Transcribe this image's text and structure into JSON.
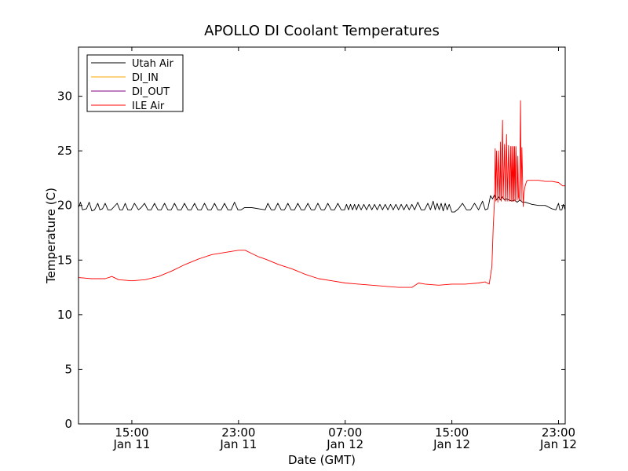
{
  "chart_data": {
    "type": "line",
    "title": "APOLLO DI Coolant Temperatures",
    "xlabel": "Date (GMT)",
    "ylabel": "Temperature (C)",
    "x_unit": "hours since Jan 11 00:00 GMT",
    "xlim": [
      11.0,
      47.5
    ],
    "ylim": [
      0,
      34.5
    ],
    "grid": false,
    "legend_position": "top-left",
    "y_ticks": [
      0,
      5,
      10,
      15,
      20,
      25,
      30
    ],
    "x_ticks": [
      {
        "x": 15,
        "time": "15:00",
        "date": "Jan 11"
      },
      {
        "x": 23,
        "time": "23:00",
        "date": "Jan 11"
      },
      {
        "x": 31,
        "time": "07:00",
        "date": "Jan 12"
      },
      {
        "x": 39,
        "time": "15:00",
        "date": "Jan 12"
      },
      {
        "x": 47,
        "time": "23:00",
        "date": "Jan 12"
      }
    ],
    "series": [
      {
        "name": "Utah Air",
        "color": "#000000",
        "x": [
          11.0,
          11.15,
          11.3,
          11.6,
          11.8,
          12.0,
          12.2,
          12.45,
          12.6,
          12.8,
          13.0,
          13.2,
          13.45,
          13.6,
          13.9,
          14.1,
          14.3,
          14.5,
          14.7,
          14.95,
          15.2,
          15.5,
          15.7,
          15.95,
          16.2,
          16.45,
          16.7,
          16.95,
          17.2,
          17.45,
          17.7,
          17.95,
          18.2,
          18.45,
          18.7,
          18.95,
          19.2,
          19.45,
          19.7,
          19.95,
          20.2,
          20.45,
          20.7,
          20.95,
          21.2,
          21.45,
          21.7,
          21.95,
          22.2,
          22.45,
          22.7,
          22.95,
          23.2,
          23.45,
          23.7,
          24.0,
          24.5,
          25.0,
          25.2,
          25.45,
          25.7,
          25.95,
          26.2,
          26.45,
          26.7,
          26.95,
          27.2,
          27.45,
          27.7,
          27.95,
          28.2,
          28.45,
          28.7,
          28.95,
          29.2,
          29.45,
          29.7,
          29.95,
          30.2,
          30.45,
          30.7,
          30.95,
          31.1,
          31.25,
          31.4,
          31.55,
          31.7,
          31.85,
          32.0,
          32.2,
          32.4,
          32.6,
          32.8,
          33.0,
          33.2,
          33.4,
          33.6,
          33.8,
          34.0,
          34.2,
          34.4,
          34.6,
          34.8,
          35.0,
          35.2,
          35.4,
          35.6,
          35.8,
          36.0,
          36.2,
          36.45,
          36.7,
          36.95,
          37.2,
          37.4,
          37.6,
          37.75,
          37.9,
          38.05,
          38.2,
          38.35,
          38.5,
          38.65,
          38.8,
          39.0,
          39.2,
          39.5,
          39.8,
          40.1,
          40.4,
          40.7,
          41.0,
          41.3,
          41.5,
          41.7,
          41.9,
          42.05,
          42.2,
          42.35,
          42.5,
          42.65,
          42.8,
          42.95,
          43.1,
          43.3,
          43.5,
          43.7,
          43.9,
          44.1,
          44.3,
          44.5,
          45.0,
          45.5,
          46.0,
          46.5,
          46.8,
          47.0,
          47.1,
          47.25,
          47.35,
          47.5
        ],
        "y": [
          19.8,
          20.3,
          19.6,
          19.7,
          20.3,
          19.5,
          19.6,
          20.2,
          19.6,
          19.7,
          20.2,
          19.6,
          19.6,
          19.8,
          20.2,
          19.6,
          19.6,
          20.2,
          19.6,
          19.6,
          20.2,
          19.6,
          19.8,
          20.2,
          19.6,
          19.6,
          20.2,
          19.6,
          19.6,
          20.2,
          19.6,
          19.6,
          20.2,
          19.6,
          19.6,
          20.2,
          19.6,
          19.6,
          20.2,
          19.6,
          19.6,
          20.2,
          19.6,
          19.6,
          20.2,
          19.6,
          19.6,
          20.2,
          19.6,
          19.6,
          20.3,
          19.6,
          19.6,
          19.8,
          19.8,
          19.8,
          19.7,
          19.6,
          20.2,
          19.6,
          19.6,
          20.2,
          19.6,
          19.6,
          20.2,
          19.6,
          19.6,
          20.2,
          19.6,
          19.6,
          20.2,
          19.6,
          19.6,
          20.2,
          19.6,
          19.6,
          20.2,
          19.6,
          19.6,
          20.2,
          19.6,
          19.6,
          20.1,
          19.6,
          20.1,
          19.6,
          20.1,
          19.6,
          20.1,
          19.6,
          20.1,
          19.6,
          20.1,
          19.6,
          20.1,
          19.6,
          20.1,
          19.6,
          20.1,
          19.6,
          20.1,
          19.6,
          20.1,
          19.6,
          20.1,
          19.6,
          20.1,
          19.6,
          20.1,
          19.6,
          20.3,
          19.6,
          19.6,
          20.2,
          19.6,
          20.4,
          19.6,
          20.2,
          19.6,
          20.2,
          19.5,
          20.2,
          19.6,
          20.1,
          19.4,
          19.4,
          19.7,
          20.2,
          19.6,
          19.6,
          20.2,
          19.6,
          20.4,
          19.6,
          19.7,
          20.9,
          20.6,
          21.0,
          20.5,
          20.8,
          20.5,
          20.8,
          20.5,
          20.6,
          20.5,
          20.4,
          20.5,
          20.3,
          20.5,
          20.3,
          20.3,
          20.1,
          20.0,
          20.0,
          19.7,
          19.6,
          20.2,
          19.6,
          19.6,
          20.1,
          19.6
        ]
      },
      {
        "name": "DI_IN",
        "color": "#ffa500",
        "x": [],
        "y": []
      },
      {
        "name": "DI_OUT",
        "color": "#800080",
        "x": [],
        "y": []
      },
      {
        "name": "ILE Air",
        "color": "#ff0000",
        "x": [
          11.0,
          12.0,
          13.0,
          13.5,
          14.0,
          15.0,
          16.0,
          17.0,
          18.0,
          19.0,
          20.0,
          21.0,
          22.0,
          23.0,
          23.5,
          24.0,
          24.5,
          25.0,
          26.0,
          27.0,
          28.0,
          29.0,
          30.0,
          31.0,
          32.0,
          33.0,
          34.0,
          35.0,
          35.5,
          36.0,
          36.5,
          37.0,
          38.0,
          39.0,
          40.0,
          41.0,
          41.5,
          41.8,
          42.0,
          42.1,
          42.2,
          42.25,
          42.3,
          42.35,
          42.45,
          42.5,
          42.6,
          42.65,
          42.7,
          42.8,
          42.85,
          42.95,
          43.0,
          43.1,
          43.15,
          43.25,
          43.3,
          43.4,
          43.45,
          43.5,
          43.55,
          43.6,
          43.65,
          43.7,
          43.75,
          43.8,
          43.9,
          43.95,
          44.0,
          44.05,
          44.1,
          44.15,
          44.2,
          44.25,
          44.35,
          44.4,
          44.45,
          44.5,
          44.55,
          44.6,
          44.7,
          44.8,
          45.0,
          45.2,
          45.5,
          46.0,
          46.5,
          47.0,
          47.3,
          47.5
        ],
        "y": [
          13.4,
          13.3,
          13.3,
          13.5,
          13.2,
          13.1,
          13.2,
          13.5,
          14.0,
          14.6,
          15.1,
          15.5,
          15.7,
          15.9,
          15.9,
          15.6,
          15.3,
          15.1,
          14.6,
          14.2,
          13.7,
          13.3,
          13.1,
          12.9,
          12.8,
          12.7,
          12.6,
          12.5,
          12.5,
          12.5,
          12.9,
          12.8,
          12.7,
          12.8,
          12.8,
          12.9,
          13.0,
          12.8,
          14.4,
          18.0,
          20.5,
          25.2,
          20.4,
          25.0,
          20.3,
          25.0,
          20.5,
          25.8,
          20.4,
          27.8,
          20.6,
          25.6,
          20.4,
          26.5,
          20.4,
          25.5,
          20.4,
          25.4,
          20.4,
          25.4,
          20.4,
          25.4,
          20.4,
          25.4,
          20.4,
          25.4,
          20.5,
          24.5,
          20.8,
          20.5,
          22.5,
          29.6,
          20.4,
          25.3,
          19.9,
          21.0,
          21.5,
          21.8,
          22.0,
          22.2,
          22.3,
          22.3,
          22.3,
          22.3,
          22.3,
          22.2,
          22.2,
          22.1,
          21.8,
          21.8
        ]
      }
    ]
  }
}
